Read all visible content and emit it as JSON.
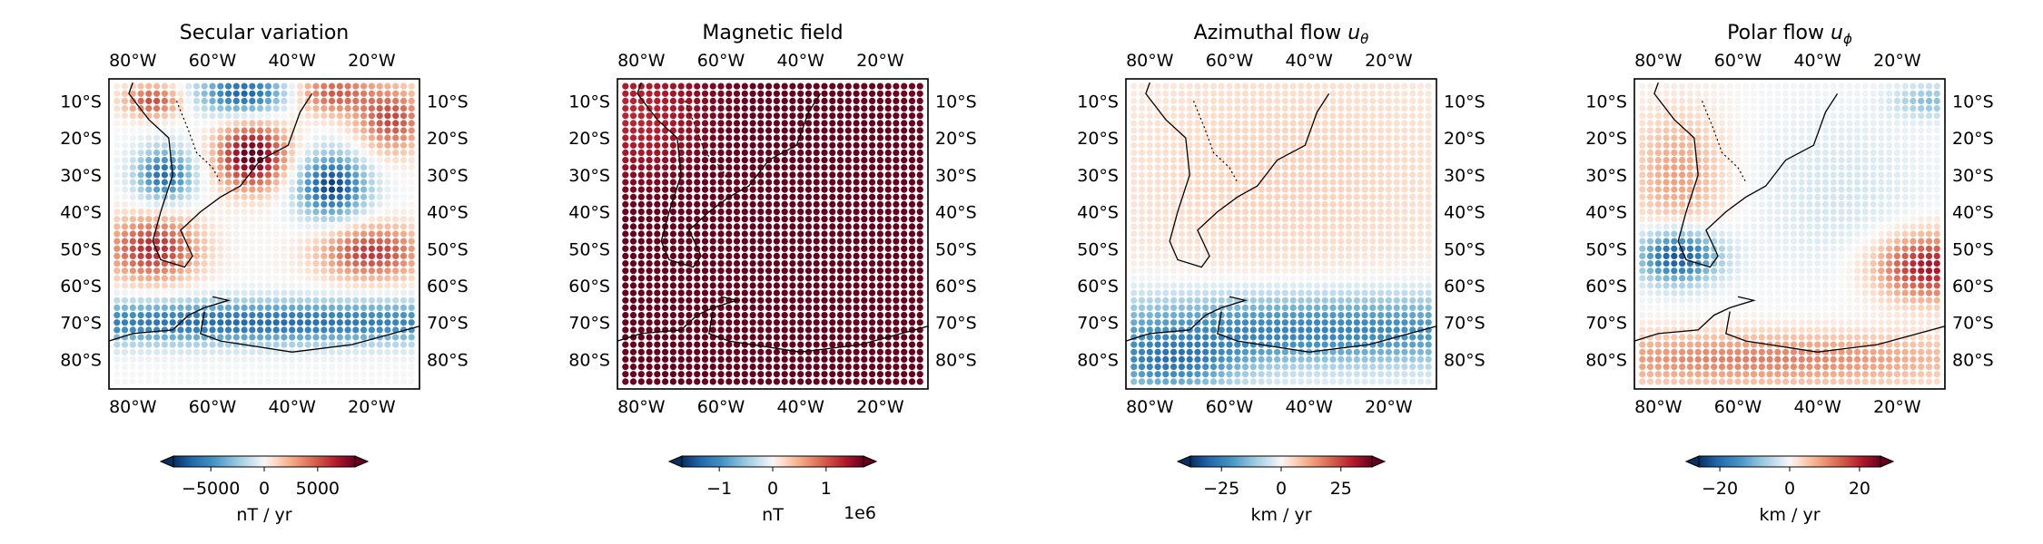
{
  "chart_data": [
    {
      "type": "heatmap",
      "title": "Secular variation",
      "lon_ticks": [
        "80°W",
        "60°W",
        "40°W",
        "20°W"
      ],
      "lat_ticks": [
        "10°S",
        "20°S",
        "30°S",
        "40°S",
        "50°S",
        "60°S",
        "70°S",
        "80°S"
      ],
      "xlim": [
        -86,
        -8
      ],
      "ylim": [
        -88,
        -4
      ],
      "colorbar": {
        "ticks": [
          "−5000",
          "0",
          "5000"
        ],
        "tick_values": [
          -5000,
          0,
          5000
        ],
        "range": [
          -8500,
          8500
        ],
        "label": "nT / yr",
        "offset_label": "",
        "extend": "both"
      },
      "features": [
        {
          "lon": -75,
          "lat": -10,
          "amp": 5500,
          "sx": 5,
          "sy": 3
        },
        {
          "lon": -52,
          "lat": -8,
          "amp": -7000,
          "sx": 8,
          "sy": 4
        },
        {
          "lon": -30,
          "lat": -8,
          "amp": 5000,
          "sx": 7,
          "sy": 4
        },
        {
          "lon": -15,
          "lat": -15,
          "amp": 5500,
          "sx": 6,
          "sy": 6
        },
        {
          "lon": -72,
          "lat": -30,
          "amp": -6500,
          "sx": 5,
          "sy": 5
        },
        {
          "lon": -50,
          "lat": -25,
          "amp": 9000,
          "sx": 6,
          "sy": 6
        },
        {
          "lon": -30,
          "lat": -33,
          "amp": -8000,
          "sx": 6,
          "sy": 6
        },
        {
          "lon": -75,
          "lat": -50,
          "amp": 6500,
          "sx": 8,
          "sy": 6
        },
        {
          "lon": -20,
          "lat": -51,
          "amp": 6000,
          "sx": 9,
          "sy": 5
        },
        {
          "lon": -50,
          "lat": -70,
          "amp": -6500,
          "sx": 60,
          "sy": 4
        }
      ]
    },
    {
      "type": "heatmap",
      "title": "Magnetic field",
      "lon_ticks": [
        "80°W",
        "60°W",
        "40°W",
        "20°W"
      ],
      "lat_ticks": [
        "10°S",
        "20°S",
        "30°S",
        "40°S",
        "50°S",
        "60°S",
        "70°S",
        "80°S"
      ],
      "xlim": [
        -86,
        -8
      ],
      "ylim": [
        -88,
        -4
      ],
      "colorbar": {
        "ticks": [
          "−1",
          "0",
          "1"
        ],
        "tick_values": [
          -1000000,
          0,
          1000000
        ],
        "range": [
          -1700000,
          1700000
        ],
        "label": "nT",
        "offset_label": "1e6",
        "extend": "both"
      },
      "features": [
        {
          "lon": -50,
          "lat": -45,
          "amp": 1700000,
          "sx": 200,
          "sy": 200
        },
        {
          "lon": -40,
          "lat": -55,
          "amp": 250000,
          "sx": 25,
          "sy": 25
        },
        {
          "lon": -80,
          "lat": -15,
          "amp": -400000,
          "sx": 12,
          "sy": 12
        }
      ]
    },
    {
      "type": "heatmap",
      "title": "Azimuthal flow ",
      "title_symbol": "u",
      "title_sub": "θ",
      "lon_ticks": [
        "80°W",
        "60°W",
        "40°W",
        "20°W"
      ],
      "lat_ticks": [
        "10°S",
        "20°S",
        "30°S",
        "40°S",
        "50°S",
        "60°S",
        "70°S",
        "80°S"
      ],
      "xlim": [
        -86,
        -8
      ],
      "ylim": [
        -88,
        -4
      ],
      "colorbar": {
        "ticks": [
          "−25",
          "0",
          "25"
        ],
        "tick_values": [
          -25,
          0,
          25
        ],
        "range": [
          -38,
          38
        ],
        "label": "km / yr",
        "offset_label": "",
        "extend": "both"
      },
      "features": [
        {
          "lon": -45,
          "lat": -30,
          "amp": 6,
          "sx": 35,
          "sy": 25
        },
        {
          "lon": -40,
          "lat": -72,
          "amp": -26,
          "sx": 50,
          "sy": 7
        },
        {
          "lon": -75,
          "lat": -82,
          "amp": -20,
          "sx": 12,
          "sy": 5
        }
      ]
    },
    {
      "type": "heatmap",
      "title": "Polar flow ",
      "title_symbol": "u",
      "title_sub": "ϕ",
      "lon_ticks": [
        "80°W",
        "60°W",
        "40°W",
        "20°W"
      ],
      "lat_ticks": [
        "10°S",
        "20°S",
        "30°S",
        "40°S",
        "50°S",
        "60°S",
        "70°S",
        "80°S"
      ],
      "xlim": [
        -86,
        -8
      ],
      "ylim": [
        -88,
        -4
      ],
      "colorbar": {
        "ticks": [
          "−20",
          "0",
          "20"
        ],
        "tick_values": [
          -20,
          0,
          20
        ],
        "range": [
          -26,
          26
        ],
        "label": "km / yr",
        "offset_label": "",
        "extend": "both"
      },
      "features": [
        {
          "lon": -75,
          "lat": -52,
          "amp": -24,
          "sx": 7,
          "sy": 5
        },
        {
          "lon": -12,
          "lat": -55,
          "amp": 22,
          "sx": 9,
          "sy": 6
        },
        {
          "lon": -75,
          "lat": -30,
          "amp": 9,
          "sx": 8,
          "sy": 12
        },
        {
          "lon": -55,
          "lat": -80,
          "amp": 12,
          "sx": 40,
          "sy": 5
        },
        {
          "lon": -12,
          "lat": -10,
          "amp": -9,
          "sx": 6,
          "sy": 3
        },
        {
          "lon": -35,
          "lat": -35,
          "amp": -3,
          "sx": 15,
          "sy": 15
        }
      ]
    }
  ]
}
